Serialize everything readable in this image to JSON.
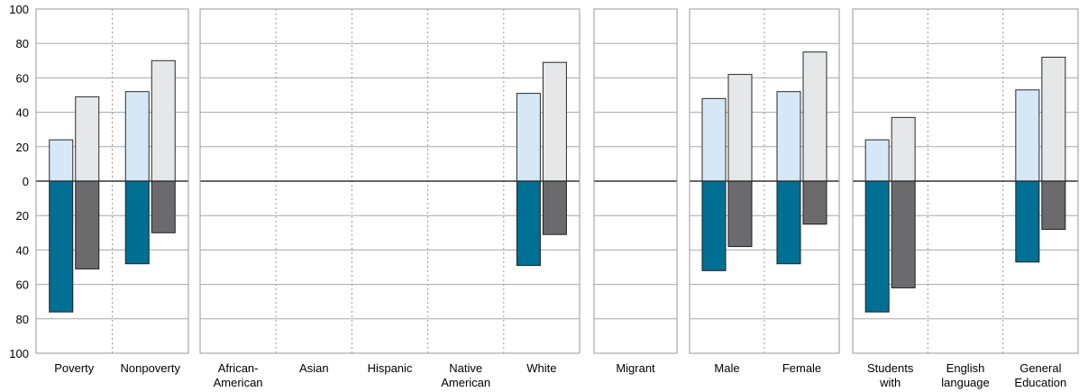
{
  "chart_data": {
    "type": "bar",
    "ylim_top": [
      0,
      100
    ],
    "ylim_bottom": [
      0,
      100
    ],
    "y_ticks_top": [
      "100",
      "80",
      "60",
      "40",
      "20",
      "0"
    ],
    "y_ticks_bottom": [
      "20",
      "40",
      "60",
      "80",
      "100"
    ],
    "colors": {
      "series_a_top": "#d6e8f7",
      "series_b_top": "#e6e7e9",
      "series_a_bottom": "#006f94",
      "series_b_bottom": "#6b6b6d",
      "frame": "#9a9a9a",
      "zero_line": "#333333"
    },
    "panels": [
      {
        "categories": [
          {
            "label": [
              "Poverty"
            ],
            "a_top": 24,
            "b_top": 49,
            "a_bottom": 76,
            "b_bottom": 51
          },
          {
            "label": [
              "Nonpoverty"
            ],
            "a_top": 52,
            "b_top": 70,
            "a_bottom": 48,
            "b_bottom": 30
          }
        ]
      },
      {
        "categories": [
          {
            "label": [
              "African-",
              "American"
            ],
            "a_top": 0,
            "b_top": 0,
            "a_bottom": 0,
            "b_bottom": 0
          },
          {
            "label": [
              "Asian"
            ],
            "a_top": 0,
            "b_top": 0,
            "a_bottom": 0,
            "b_bottom": 0
          },
          {
            "label": [
              "Hispanic"
            ],
            "a_top": 0,
            "b_top": 0,
            "a_bottom": 0,
            "b_bottom": 0
          },
          {
            "label": [
              "Native",
              "American"
            ],
            "a_top": 0,
            "b_top": 0,
            "a_bottom": 0,
            "b_bottom": 0
          },
          {
            "label": [
              "White"
            ],
            "a_top": 51,
            "b_top": 69,
            "a_bottom": 49,
            "b_bottom": 31
          }
        ]
      },
      {
        "categories": [
          {
            "label": [
              "Migrant"
            ],
            "a_top": 0,
            "b_top": 0,
            "a_bottom": 0,
            "b_bottom": 0
          }
        ]
      },
      {
        "categories": [
          {
            "label": [
              "Male"
            ],
            "a_top": 48,
            "b_top": 62,
            "a_bottom": 52,
            "b_bottom": 38
          },
          {
            "label": [
              "Female"
            ],
            "a_top": 52,
            "b_top": 75,
            "a_bottom": 48,
            "b_bottom": 25
          }
        ]
      },
      {
        "categories": [
          {
            "label": [
              "Students",
              "with"
            ],
            "a_top": 24,
            "b_top": 37,
            "a_bottom": 76,
            "b_bottom": 62
          },
          {
            "label": [
              "English",
              "language"
            ],
            "a_top": 0,
            "b_top": 0,
            "a_bottom": 0,
            "b_bottom": 0
          },
          {
            "label": [
              "General",
              "Education"
            ],
            "a_top": 53,
            "b_top": 72,
            "a_bottom": 47,
            "b_bottom": 28
          }
        ]
      }
    ]
  }
}
